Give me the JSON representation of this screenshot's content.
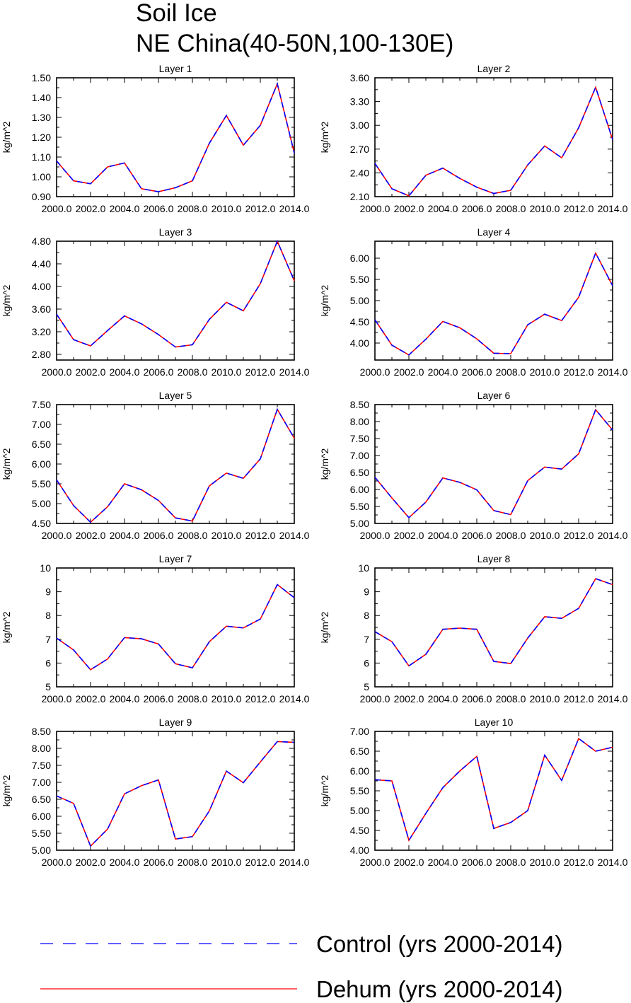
{
  "title": "Soil Ice",
  "subtitle": "NE China(40-50N,100-130E)",
  "ylabel": "kg/m^2",
  "colors": {
    "control": "#0000ff",
    "dehum": "#ff0000",
    "axis": "#000000"
  },
  "legend": [
    {
      "label": "Control (yrs 2000-2014)",
      "style": "dashed",
      "color": "#0000ff"
    },
    {
      "label": "Dehum (yrs 2000-2014)",
      "style": "solid",
      "color": "#ff0000"
    }
  ],
  "chart_data": [
    {
      "type": "line",
      "title": "Layer 1",
      "ylabel": "kg/m^2",
      "x": [
        2000,
        2001,
        2002,
        2003,
        2004,
        2005,
        2006,
        2007,
        2008,
        2009,
        2010,
        2011,
        2012,
        2013,
        2014
      ],
      "xticks": [
        "2000.0",
        "2002.0",
        "2004.0",
        "2006.0",
        "2008.0",
        "2010.0",
        "2012.0",
        "2014.0"
      ],
      "ylim": [
        0.9,
        1.5
      ],
      "yticks": [
        "0.90",
        "1.00",
        "1.10",
        "1.20",
        "1.30",
        "1.40",
        "1.50"
      ],
      "series": [
        {
          "name": "Control (yrs 2000-2014)",
          "values": [
            1.08,
            0.98,
            0.965,
            1.05,
            1.07,
            0.94,
            0.925,
            0.945,
            0.98,
            1.17,
            1.31,
            1.16,
            1.26,
            1.47,
            1.12
          ]
        },
        {
          "name": "Dehum (yrs 2000-2014)",
          "values": [
            1.08,
            0.98,
            0.965,
            1.05,
            1.07,
            0.94,
            0.925,
            0.945,
            0.98,
            1.17,
            1.31,
            1.16,
            1.26,
            1.47,
            1.12
          ]
        }
      ]
    },
    {
      "type": "line",
      "title": "Layer 2",
      "ylabel": "kg/m^2",
      "x": [
        2000,
        2001,
        2002,
        2003,
        2004,
        2005,
        2006,
        2007,
        2008,
        2009,
        2010,
        2011,
        2012,
        2013,
        2014
      ],
      "xticks": [
        "2000.0",
        "2002.0",
        "2004.0",
        "2006.0",
        "2008.0",
        "2010.0",
        "2012.0",
        "2014.0"
      ],
      "ylim": [
        2.1,
        3.6
      ],
      "yticks": [
        "2.10",
        "2.40",
        "2.70",
        "3.00",
        "3.30",
        "3.60"
      ],
      "series": [
        {
          "name": "Control (yrs 2000-2014)",
          "values": [
            2.52,
            2.2,
            2.11,
            2.37,
            2.46,
            2.33,
            2.22,
            2.14,
            2.18,
            2.5,
            2.74,
            2.59,
            2.97,
            3.48,
            2.82
          ]
        },
        {
          "name": "Dehum (yrs 2000-2014)",
          "values": [
            2.52,
            2.2,
            2.11,
            2.37,
            2.46,
            2.33,
            2.22,
            2.14,
            2.18,
            2.5,
            2.74,
            2.59,
            2.97,
            3.48,
            2.82
          ]
        }
      ]
    },
    {
      "type": "line",
      "title": "Layer 3",
      "ylabel": "kg/m^2",
      "x": [
        2000,
        2001,
        2002,
        2003,
        2004,
        2005,
        2006,
        2007,
        2008,
        2009,
        2010,
        2011,
        2012,
        2013,
        2014
      ],
      "xticks": [
        "2000.0",
        "2002.0",
        "2004.0",
        "2006.0",
        "2008.0",
        "2010.0",
        "2012.0",
        "2014.0"
      ],
      "ylim": [
        2.7,
        4.8
      ],
      "yticks": [
        "2.80",
        "3.20",
        "3.60",
        "4.00",
        "4.40",
        "4.80"
      ],
      "series": [
        {
          "name": "Control (yrs 2000-2014)",
          "values": [
            3.51,
            3.06,
            2.95,
            3.22,
            3.48,
            3.34,
            3.15,
            2.93,
            2.97,
            3.42,
            3.72,
            3.57,
            4.05,
            4.8,
            4.1
          ]
        },
        {
          "name": "Dehum (yrs 2000-2014)",
          "values": [
            3.51,
            3.06,
            2.95,
            3.22,
            3.48,
            3.34,
            3.15,
            2.93,
            2.97,
            3.42,
            3.72,
            3.57,
            4.05,
            4.8,
            4.1
          ]
        }
      ]
    },
    {
      "type": "line",
      "title": "Layer 4",
      "ylabel": "kg/m^2",
      "x": [
        2000,
        2001,
        2002,
        2003,
        2004,
        2005,
        2006,
        2007,
        2008,
        2009,
        2010,
        2011,
        2012,
        2013,
        2014
      ],
      "xticks": [
        "2000.0",
        "2002.0",
        "2004.0",
        "2006.0",
        "2008.0",
        "2010.0",
        "2012.0",
        "2014.0"
      ],
      "ylim": [
        3.6,
        6.4
      ],
      "yticks": [
        "4.00",
        "4.50",
        "5.00",
        "5.50",
        "6.00"
      ],
      "series": [
        {
          "name": "Control (yrs 2000-2014)",
          "values": [
            4.55,
            3.95,
            3.72,
            4.09,
            4.51,
            4.36,
            4.1,
            3.76,
            3.75,
            4.43,
            4.68,
            4.53,
            5.08,
            6.12,
            5.35
          ]
        },
        {
          "name": "Dehum (yrs 2000-2014)",
          "values": [
            4.55,
            3.95,
            3.72,
            4.09,
            4.51,
            4.36,
            4.1,
            3.76,
            3.75,
            4.43,
            4.68,
            4.53,
            5.08,
            6.12,
            5.35
          ]
        }
      ]
    },
    {
      "type": "line",
      "title": "Layer 5",
      "ylabel": "kg/m^2",
      "x": [
        2000,
        2001,
        2002,
        2003,
        2004,
        2005,
        2006,
        2007,
        2008,
        2009,
        2010,
        2011,
        2012,
        2013,
        2014
      ],
      "xticks": [
        "2000.0",
        "2002.0",
        "2004.0",
        "2006.0",
        "2008.0",
        "2010.0",
        "2012.0",
        "2014.0"
      ],
      "ylim": [
        4.5,
        7.5
      ],
      "yticks": [
        "4.50",
        "5.00",
        "5.50",
        "6.00",
        "6.50",
        "7.00",
        "7.50"
      ],
      "series": [
        {
          "name": "Control (yrs 2000-2014)",
          "values": [
            5.6,
            4.95,
            4.53,
            4.92,
            5.5,
            5.35,
            5.08,
            4.64,
            4.56,
            5.45,
            5.77,
            5.64,
            6.13,
            7.38,
            6.65
          ]
        },
        {
          "name": "Dehum (yrs 2000-2014)",
          "values": [
            5.6,
            4.95,
            4.53,
            4.92,
            5.5,
            5.35,
            5.08,
            4.64,
            4.56,
            5.45,
            5.77,
            5.64,
            6.13,
            7.38,
            6.65
          ]
        }
      ]
    },
    {
      "type": "line",
      "title": "Layer 6",
      "ylabel": "kg/m^2",
      "x": [
        2000,
        2001,
        2002,
        2003,
        2004,
        2005,
        2006,
        2007,
        2008,
        2009,
        2010,
        2011,
        2012,
        2013,
        2014
      ],
      "xticks": [
        "2000.0",
        "2002.0",
        "2004.0",
        "2006.0",
        "2008.0",
        "2010.0",
        "2012.0",
        "2014.0"
      ],
      "ylim": [
        5.0,
        8.5
      ],
      "yticks": [
        "5.00",
        "5.50",
        "6.00",
        "6.50",
        "7.00",
        "7.50",
        "8.00",
        "8.50"
      ],
      "series": [
        {
          "name": "Control (yrs 2000-2014)",
          "values": [
            6.36,
            5.75,
            5.17,
            5.63,
            6.34,
            6.21,
            5.99,
            5.38,
            5.26,
            6.26,
            6.66,
            6.6,
            7.05,
            8.35,
            7.75
          ]
        },
        {
          "name": "Dehum (yrs 2000-2014)",
          "values": [
            6.36,
            5.75,
            5.17,
            5.63,
            6.34,
            6.21,
            5.99,
            5.38,
            5.26,
            6.26,
            6.66,
            6.6,
            7.05,
            8.35,
            7.75
          ]
        }
      ]
    },
    {
      "type": "line",
      "title": "Layer 7",
      "ylabel": "kg/m^2",
      "x": [
        2000,
        2001,
        2002,
        2003,
        2004,
        2005,
        2006,
        2007,
        2008,
        2009,
        2010,
        2011,
        2012,
        2013,
        2014
      ],
      "xticks": [
        "2000.0",
        "2002.0",
        "2004.0",
        "2006.0",
        "2008.0",
        "2010.0",
        "2012.0",
        "2014.0"
      ],
      "ylim": [
        5,
        10
      ],
      "yticks": [
        "5",
        "6",
        "7",
        "8",
        "9",
        "10"
      ],
      "series": [
        {
          "name": "Control (yrs 2000-2014)",
          "values": [
            7.05,
            6.55,
            5.72,
            6.17,
            7.07,
            7.02,
            6.8,
            5.97,
            5.8,
            6.9,
            7.55,
            7.48,
            7.85,
            9.3,
            8.75
          ]
        },
        {
          "name": "Dehum (yrs 2000-2014)",
          "values": [
            7.05,
            6.55,
            5.72,
            6.17,
            7.07,
            7.02,
            6.8,
            5.97,
            5.8,
            6.9,
            7.55,
            7.48,
            7.85,
            9.3,
            8.75
          ]
        }
      ]
    },
    {
      "type": "line",
      "title": "Layer 8",
      "ylabel": "kg/m^2",
      "x": [
        2000,
        2001,
        2002,
        2003,
        2004,
        2005,
        2006,
        2007,
        2008,
        2009,
        2010,
        2011,
        2012,
        2013,
        2014
      ],
      "xticks": [
        "2000.0",
        "2002.0",
        "2004.0",
        "2006.0",
        "2008.0",
        "2010.0",
        "2012.0",
        "2014.0"
      ],
      "ylim": [
        5,
        10
      ],
      "yticks": [
        "5",
        "6",
        "7",
        "8",
        "9",
        "10"
      ],
      "series": [
        {
          "name": "Control (yrs 2000-2014)",
          "values": [
            7.32,
            6.9,
            5.88,
            6.37,
            7.42,
            7.47,
            7.42,
            6.07,
            5.98,
            7.05,
            7.95,
            7.88,
            8.3,
            9.55,
            9.3
          ]
        },
        {
          "name": "Dehum (yrs 2000-2014)",
          "values": [
            7.32,
            6.9,
            5.88,
            6.37,
            7.42,
            7.47,
            7.42,
            6.07,
            5.98,
            7.05,
            7.95,
            7.88,
            8.3,
            9.55,
            9.3
          ]
        }
      ]
    },
    {
      "type": "line",
      "title": "Layer 9",
      "ylabel": "kg/m^2",
      "x": [
        2000,
        2001,
        2002,
        2003,
        2004,
        2005,
        2006,
        2007,
        2008,
        2009,
        2010,
        2011,
        2012,
        2013,
        2014
      ],
      "xticks": [
        "2000.0",
        "2002.0",
        "2004.0",
        "2006.0",
        "2008.0",
        "2010.0",
        "2012.0",
        "2014.0"
      ],
      "ylim": [
        5.0,
        8.5
      ],
      "yticks": [
        "5.00",
        "5.50",
        "6.00",
        "6.50",
        "7.00",
        "7.50",
        "8.00",
        "8.50"
      ],
      "series": [
        {
          "name": "Control (yrs 2000-2014)",
          "values": [
            6.6,
            6.38,
            5.12,
            5.62,
            6.66,
            6.9,
            7.07,
            5.33,
            5.4,
            6.16,
            7.33,
            6.99,
            7.6,
            8.2,
            8.18
          ]
        },
        {
          "name": "Dehum (yrs 2000-2014)",
          "values": [
            6.6,
            6.38,
            5.12,
            5.62,
            6.66,
            6.9,
            7.07,
            5.33,
            5.4,
            6.16,
            7.33,
            6.99,
            7.6,
            8.2,
            8.18
          ]
        }
      ]
    },
    {
      "type": "line",
      "title": "Layer 10",
      "ylabel": "kg/m^2",
      "x": [
        2000,
        2001,
        2002,
        2003,
        2004,
        2005,
        2006,
        2007,
        2008,
        2009,
        2010,
        2011,
        2012,
        2013,
        2014
      ],
      "xticks": [
        "2000.0",
        "2002.0",
        "2004.0",
        "2006.0",
        "2008.0",
        "2010.0",
        "2012.0",
        "2014.0"
      ],
      "ylim": [
        4.0,
        7.0
      ],
      "yticks": [
        "4.00",
        "4.50",
        "5.00",
        "5.50",
        "6.00",
        "6.50",
        "7.00"
      ],
      "series": [
        {
          "name": "Control (yrs 2000-2014)",
          "values": [
            5.78,
            5.75,
            4.25,
            4.93,
            5.58,
            6.0,
            6.37,
            4.55,
            4.7,
            5.0,
            6.4,
            5.76,
            6.82,
            6.5,
            6.6
          ]
        },
        {
          "name": "Dehum (yrs 2000-2014)",
          "values": [
            5.78,
            5.75,
            4.25,
            4.93,
            5.58,
            6.0,
            6.37,
            4.55,
            4.7,
            5.0,
            6.4,
            5.76,
            6.82,
            6.5,
            6.6
          ]
        }
      ]
    }
  ]
}
